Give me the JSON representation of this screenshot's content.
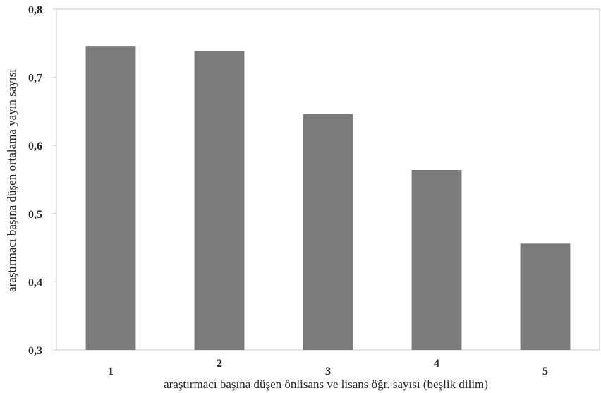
{
  "chart_data": {
    "type": "bar",
    "title": "",
    "xlabel": "araştırmacı başına düşen önlisans ve lisans öğr. sayısı (beşlik dilim)",
    "ylabel": "araştırmacı başına düşen ortalama yayın sayısı",
    "categories": [
      "1",
      "2",
      "3",
      "4",
      "5"
    ],
    "values": [
      0.746,
      0.739,
      0.646,
      0.564,
      0.456
    ],
    "ylim": [
      0.3,
      0.8
    ],
    "yticks": [
      "0,3",
      "0,4",
      "0,5",
      "0,6",
      "0,7",
      "0,8"
    ],
    "grid": false,
    "bar_color": "#7a7a7a",
    "axis_color": "#c8c8c8"
  }
}
